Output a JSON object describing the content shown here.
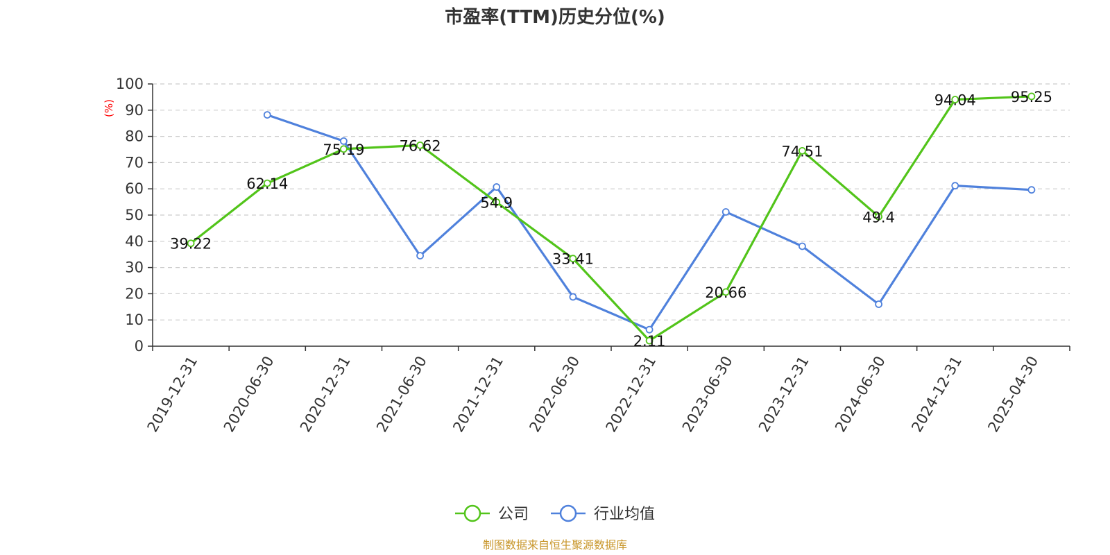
{
  "chart_data": {
    "type": "line",
    "title": "市盈率(TTM)历史分位(%)",
    "ylabel": "(%)",
    "ylim": [
      0,
      100
    ],
    "yticks": [
      0,
      10,
      20,
      30,
      40,
      50,
      60,
      70,
      80,
      90,
      100
    ],
    "grid": true,
    "legend_position": "bottom-center",
    "categories": [
      "2019-12-31",
      "2020-06-30",
      "2020-12-31",
      "2021-06-30",
      "2021-12-31",
      "2022-06-30",
      "2022-12-31",
      "2023-06-30",
      "2023-12-31",
      "2024-06-30",
      "2024-12-31",
      "2025-04-30"
    ],
    "series": [
      {
        "name": "公司",
        "color": "#52c41a",
        "values": [
          39.22,
          62.14,
          75.19,
          76.62,
          54.9,
          33.41,
          2.11,
          20.66,
          74.51,
          49.4,
          94.04,
          95.25
        ],
        "labels": [
          "39.22",
          "62.14",
          "75.19",
          "76.62",
          "54.9",
          "33.41",
          "2.11",
          "20.66",
          "74.51",
          "49.4",
          "94.04",
          "95.25"
        ]
      },
      {
        "name": "行业均值",
        "color": "#4f81dc",
        "values": [
          null,
          88.2,
          78.2,
          34.5,
          60.7,
          18.8,
          6.3,
          51.2,
          38.1,
          16.0,
          61.2,
          59.6
        ]
      }
    ]
  },
  "source_text": "制图数据来自恒生聚源数据库"
}
